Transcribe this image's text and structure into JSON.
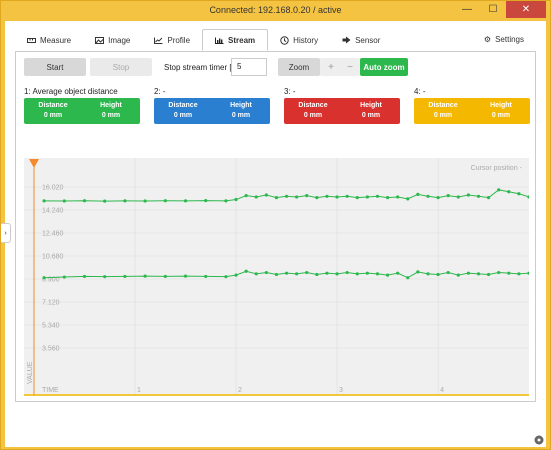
{
  "window": {
    "title": "Connected: 192.168.0.20 / active",
    "minimize": "—",
    "maximize": "☐",
    "close": "✕"
  },
  "tabs": [
    {
      "label": "Measure",
      "icon": "ruler-icon"
    },
    {
      "label": "Image",
      "icon": "image-icon"
    },
    {
      "label": "Profile",
      "icon": "profile-chart-icon"
    },
    {
      "label": "Stream",
      "icon": "bar-chart-icon",
      "active": true
    },
    {
      "label": "History",
      "icon": "history-icon"
    },
    {
      "label": "Sensor",
      "icon": "sensor-icon"
    }
  ],
  "settings_label": "Settings",
  "controls": {
    "start_label": "Start",
    "stop_label": "Stop",
    "timer_label": "Stop stream timer [s]",
    "timer_value": "5",
    "zoom_label": "Zoom",
    "zoom_in": "+",
    "zoom_out": "−",
    "auto_zoom_label": "Auto zoom"
  },
  "channels": [
    {
      "title": "1: Average object distance",
      "color": "#2db84d",
      "distance_label": "Distance",
      "height_label": "Height",
      "distance_value": "0 mm",
      "height_value": "0 mm"
    },
    {
      "title": "2: -",
      "color": "#2a7fd0",
      "distance_label": "Distance",
      "height_label": "Height",
      "distance_value": "0 mm",
      "height_value": "0 mm"
    },
    {
      "title": "3: -",
      "color": "#d9312e",
      "distance_label": "Distance",
      "height_label": "Height",
      "distance_value": "0 mm",
      "height_value": "0 mm"
    },
    {
      "title": "4: -",
      "color": "#f5b800",
      "distance_label": "Distance",
      "height_label": "Height",
      "distance_value": "0 mm",
      "height_value": "0 mm"
    }
  ],
  "chart_data": {
    "type": "line",
    "ylabel": "VALUE",
    "xlabel": "TIME",
    "cursor_label": "Cursor position  -",
    "y_ticks": [
      "16.020",
      "14.240",
      "12.460",
      "10.680",
      "8.900",
      "7.120",
      "5.340",
      "3.560"
    ],
    "x_ticks": [
      "1",
      "2",
      "3",
      "4"
    ],
    "ylim": [
      0,
      17.8
    ],
    "xlim": [
      0,
      4.9
    ],
    "grid": true,
    "series": [
      {
        "color": "#2db84d",
        "x": [
          0.1,
          0.3,
          0.5,
          0.7,
          0.9,
          1.1,
          1.3,
          1.5,
          1.7,
          1.9,
          2.0,
          2.1,
          2.2,
          2.3,
          2.4,
          2.5,
          2.6,
          2.7,
          2.8,
          2.9,
          3.0,
          3.1,
          3.2,
          3.3,
          3.4,
          3.5,
          3.6,
          3.7,
          3.8,
          3.9,
          4.0,
          4.1,
          4.2,
          4.3,
          4.4,
          4.5,
          4.6,
          4.7,
          4.8,
          4.9
        ],
        "values": [
          14.95,
          14.94,
          14.96,
          14.93,
          14.95,
          14.94,
          14.96,
          14.95,
          14.97,
          14.95,
          15.05,
          15.35,
          15.25,
          15.4,
          15.2,
          15.3,
          15.25,
          15.35,
          15.2,
          15.3,
          15.25,
          15.3,
          15.2,
          15.25,
          15.3,
          15.2,
          15.25,
          15.1,
          15.45,
          15.3,
          15.2,
          15.35,
          15.25,
          15.4,
          15.3,
          15.2,
          15.8,
          15.65,
          15.5,
          15.25
        ]
      },
      {
        "color": "#2db84d",
        "x": [
          0.1,
          0.3,
          0.5,
          0.7,
          0.9,
          1.1,
          1.3,
          1.5,
          1.7,
          1.9,
          2.0,
          2.1,
          2.2,
          2.3,
          2.4,
          2.5,
          2.6,
          2.7,
          2.8,
          2.9,
          3.0,
          3.1,
          3.2,
          3.3,
          3.4,
          3.5,
          3.6,
          3.7,
          3.8,
          3.9,
          4.0,
          4.1,
          4.2,
          4.3,
          4.4,
          4.5,
          4.6,
          4.7,
          4.8,
          4.9
        ],
        "values": [
          9.0,
          9.05,
          9.1,
          9.08,
          9.1,
          9.12,
          9.1,
          9.12,
          9.1,
          9.08,
          9.2,
          9.5,
          9.3,
          9.4,
          9.25,
          9.35,
          9.3,
          9.4,
          9.25,
          9.35,
          9.3,
          9.4,
          9.3,
          9.35,
          9.3,
          9.2,
          9.35,
          9.0,
          9.45,
          9.3,
          9.25,
          9.4,
          9.2,
          9.35,
          9.3,
          9.25,
          9.4,
          9.35,
          9.3,
          9.35
        ]
      }
    ]
  }
}
